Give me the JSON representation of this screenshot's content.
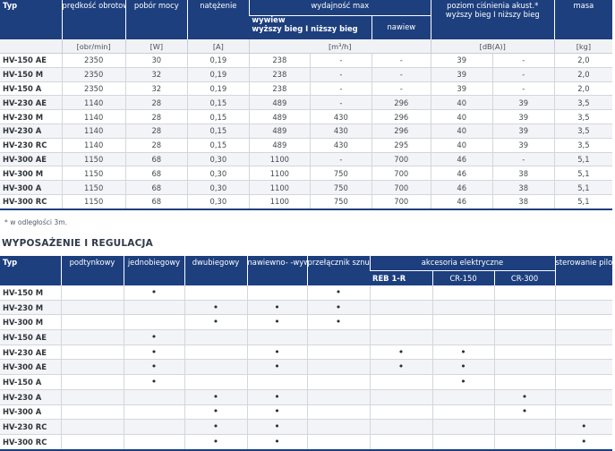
{
  "specs": {
    "headers": {
      "typ": "Typ",
      "predkosc": "prędkość obrotowa",
      "pobor": "pobór mocy",
      "natezenie": "natężenie",
      "wydajnosc": "wydajność max",
      "wywiew": "wywiew",
      "wywiew_sub": "wyższy bieg I niższy bieg",
      "nawiew": "nawiew",
      "poziom": "poziom ciśnienia akust.*",
      "poziom_sub": "wyższy bieg I niższy bieg",
      "masa": "masa"
    },
    "units": [
      "",
      "[obr/min]",
      "[W]",
      "[A]",
      "[m³/h]",
      "[dB(A)]",
      "[kg]"
    ],
    "rows": [
      [
        "HV-150 AE",
        "2350",
        "30",
        "0,19",
        "238",
        "-",
        "-",
        "39",
        "-",
        "2,0"
      ],
      [
        "HV-150 M",
        "2350",
        "32",
        "0,19",
        "238",
        "-",
        "-",
        "39",
        "-",
        "2,0"
      ],
      [
        "HV-150 A",
        "2350",
        "32",
        "0,19",
        "238",
        "-",
        "-",
        "39",
        "-",
        "2,0"
      ],
      [
        "HV-230 AE",
        "1140",
        "28",
        "0,15",
        "489",
        "-",
        "296",
        "40",
        "39",
        "3,5"
      ],
      [
        "HV-230 M",
        "1140",
        "28",
        "0,15",
        "489",
        "430",
        "296",
        "40",
        "39",
        "3,5"
      ],
      [
        "HV-230 A",
        "1140",
        "28",
        "0,15",
        "489",
        "430",
        "296",
        "40",
        "39",
        "3,5"
      ],
      [
        "HV-230 RC",
        "1140",
        "28",
        "0,15",
        "489",
        "430",
        "295",
        "40",
        "39",
        "3,5"
      ],
      [
        "HV-300 AE",
        "1150",
        "68",
        "0,30",
        "1100",
        "-",
        "700",
        "46",
        "-",
        "5,1"
      ],
      [
        "HV-300 M",
        "1150",
        "68",
        "0,30",
        "1100",
        "750",
        "700",
        "46",
        "38",
        "5,1"
      ],
      [
        "HV-300 A",
        "1150",
        "68",
        "0,30",
        "1100",
        "750",
        "700",
        "46",
        "38",
        "5,1"
      ],
      [
        "HV-300 RC",
        "1150",
        "68",
        "0,30",
        "1100",
        "750",
        "700",
        "46",
        "38",
        "5,1"
      ]
    ],
    "footnote": "* w odległości 3m."
  },
  "equipment": {
    "title": "WYPOSAŻENIE I REGULACJA",
    "headers": {
      "typ": "Typ",
      "podtynkowy": "podtynkowy",
      "jednobiegowy": "jednobiegowy",
      "dwubiegowy": "dwubiegowy",
      "nawiewno": "nawiewno- -wywiewny",
      "przelacznik": "przełącznik sznurkowy",
      "akcesoria": "akcesoria elektryczne",
      "reb": "REB 1-R",
      "cr150": "CR-150",
      "cr300": "CR-300",
      "sterowanie": "sterowanie pilotem"
    },
    "dot": "•",
    "rows": [
      {
        "type": "HV-150 M",
        "marks": [
          0,
          1,
          0,
          0,
          1,
          0,
          0,
          0,
          0
        ]
      },
      {
        "type": "HV-230 M",
        "marks": [
          0,
          0,
          1,
          1,
          1,
          0,
          0,
          0,
          0
        ]
      },
      {
        "type": "HV-300 M",
        "marks": [
          0,
          0,
          1,
          1,
          1,
          0,
          0,
          0,
          0
        ]
      },
      {
        "type": "HV-150 AE",
        "marks": [
          0,
          1,
          0,
          0,
          0,
          0,
          0,
          0,
          0
        ]
      },
      {
        "type": "HV-230 AE",
        "marks": [
          0,
          1,
          0,
          1,
          0,
          1,
          1,
          0,
          0
        ]
      },
      {
        "type": "HV-300 AE",
        "marks": [
          0,
          1,
          0,
          1,
          0,
          1,
          1,
          0,
          0
        ]
      },
      {
        "type": "HV-150 A",
        "marks": [
          0,
          1,
          0,
          0,
          0,
          0,
          1,
          0,
          0
        ]
      },
      {
        "type": "HV-230 A",
        "marks": [
          0,
          0,
          1,
          1,
          0,
          0,
          0,
          1,
          0
        ]
      },
      {
        "type": "HV-300 A",
        "marks": [
          0,
          0,
          1,
          1,
          0,
          0,
          0,
          1,
          0
        ]
      },
      {
        "type": "HV-230 RC",
        "marks": [
          0,
          0,
          1,
          1,
          0,
          0,
          0,
          0,
          1
        ]
      },
      {
        "type": "HV-300 RC",
        "marks": [
          0,
          0,
          1,
          1,
          0,
          0,
          0,
          0,
          1
        ]
      }
    ]
  }
}
